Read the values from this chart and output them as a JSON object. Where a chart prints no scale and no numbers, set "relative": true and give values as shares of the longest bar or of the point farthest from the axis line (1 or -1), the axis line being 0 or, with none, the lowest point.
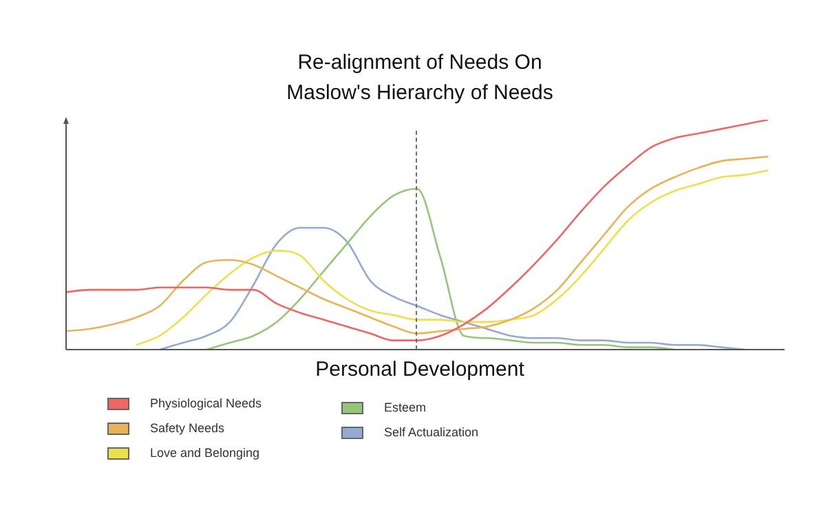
{
  "chart_data": {
    "type": "line",
    "title": "Re-alignment of Needs On\nMaslow's Hierarchy of Needs",
    "xlabel": "Personal Development",
    "relative": true,
    "legend": "bottom",
    "marker": "none",
    "categories": [
      null,
      null,
      null,
      null,
      null,
      null,
      null,
      null,
      null,
      null,
      null,
      null,
      null,
      null,
      null,
      null,
      null,
      null,
      null,
      null,
      null,
      null,
      null,
      null,
      null,
      null,
      null,
      null,
      null,
      null,
      null
    ],
    "series": [
      {
        "name": "Physiological Needs",
        "color": "#ee6666",
        "values": [
          0.25,
          0.26,
          0.26,
          0.26,
          0.27,
          0.27,
          0.27,
          0.26,
          0.26,
          0.2,
          0.16,
          0.13,
          0.1,
          0.07,
          0.04,
          0.04,
          0.06,
          0.11,
          0.18,
          0.27,
          0.37,
          0.48,
          0.6,
          0.71,
          0.8,
          0.88,
          0.92,
          0.94,
          0.96,
          0.98,
          1
        ]
      },
      {
        "name": "Safety Needs",
        "color": "#e8b45a",
        "values": [
          0.08,
          0.09,
          0.11,
          0.14,
          0.19,
          0.3,
          0.38,
          0.39,
          0.37,
          0.32,
          0.27,
          0.22,
          0.18,
          0.14,
          0.1,
          0.07,
          0.08,
          0.09,
          0.1,
          0.13,
          0.18,
          0.26,
          0.38,
          0.5,
          0.62,
          0.7,
          0.75,
          0.79,
          0.82,
          0.83,
          0.84
        ]
      },
      {
        "name": "Love and Belonging",
        "color": "#eee04a",
        "values": [
          null,
          null,
          null,
          0.02,
          0.06,
          0.14,
          0.24,
          0.33,
          0.4,
          0.43,
          0.41,
          0.3,
          0.22,
          0.17,
          0.15,
          0.13,
          0.13,
          0.12,
          0.12,
          0.13,
          0.15,
          0.22,
          0.32,
          0.44,
          0.56,
          0.64,
          0.69,
          0.72,
          0.75,
          0.76,
          0.78
        ]
      },
      {
        "name": "Esteem",
        "color": "#98c47a",
        "values": [
          null,
          null,
          null,
          null,
          null,
          null,
          0,
          0.03,
          0.06,
          0.12,
          0.22,
          0.34,
          0.46,
          0.58,
          0.67,
          0.7,
          0.4,
          0.06,
          0.05,
          0.04,
          0.03,
          0.03,
          0.02,
          0.02,
          0.01,
          0.01,
          0,
          null,
          null,
          null,
          null
        ]
      },
      {
        "name": "Self Actualization",
        "color": "#93aad2",
        "values": [
          null,
          null,
          null,
          null,
          0,
          0.03,
          0.06,
          0.12,
          0.28,
          0.46,
          0.53,
          0.53,
          0.47,
          0.3,
          0.23,
          0.19,
          0.15,
          0.12,
          0.09,
          0.06,
          0.05,
          0.05,
          0.04,
          0.04,
          0.03,
          0.03,
          0.02,
          0.02,
          0.01,
          0,
          null
        ]
      }
    ]
  }
}
